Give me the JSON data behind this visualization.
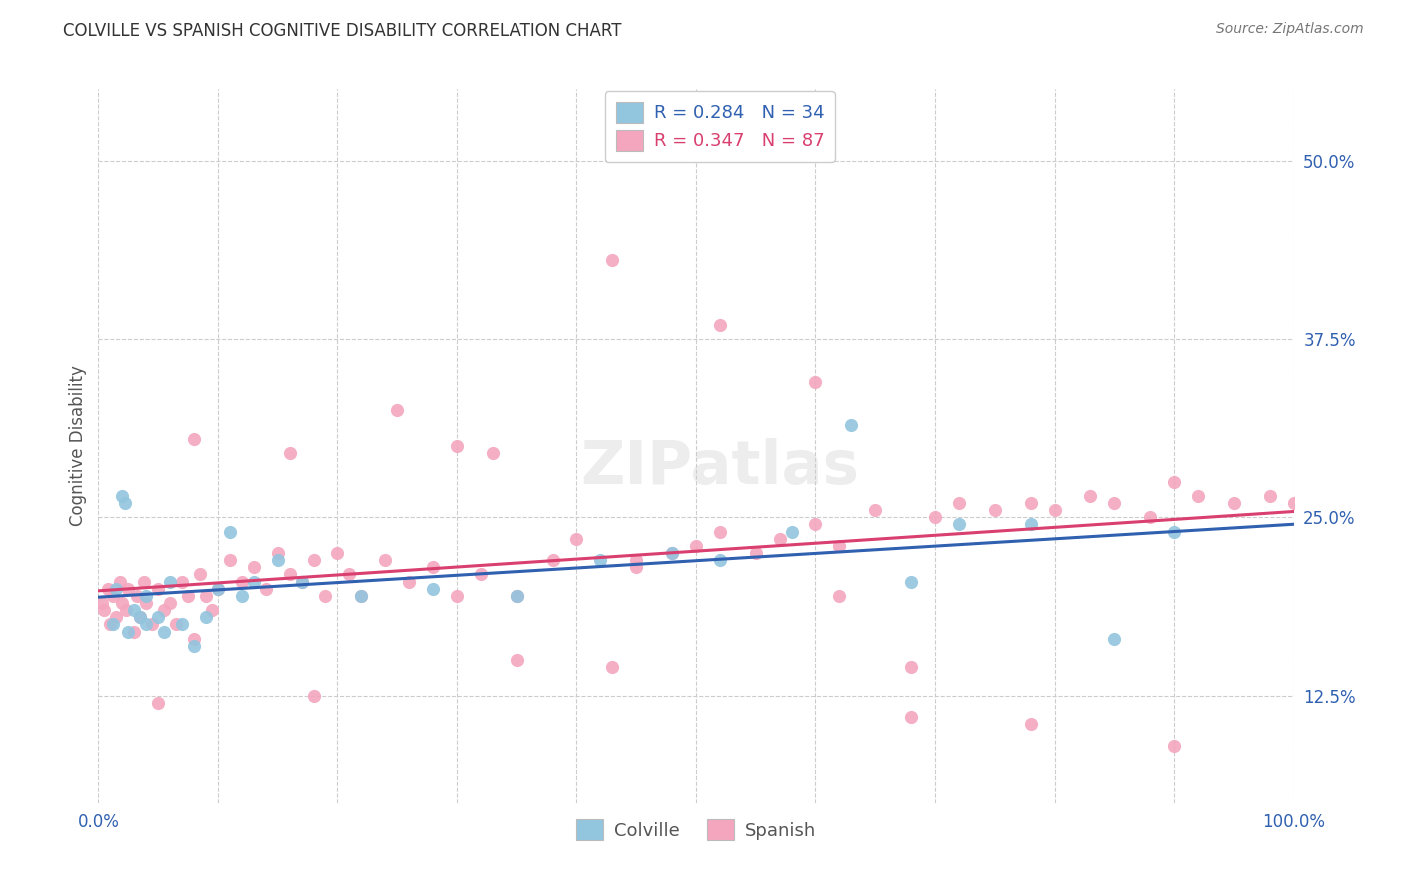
{
  "title": "COLVILLE VS SPANISH COGNITIVE DISABILITY CORRELATION CHART",
  "source": "Source: ZipAtlas.com",
  "ylabel_label": "Cognitive Disability",
  "legend_label1": "Colville",
  "legend_label2": "Spanish",
  "legend_R1": "R = 0.284",
  "legend_N1": "N = 34",
  "legend_R2": "R = 0.347",
  "legend_N2": "N = 87",
  "color_blue": "#92c5de",
  "color_pink": "#f4a6be",
  "line_blue": "#3060b0",
  "line_pink": "#d94070",
  "color_text_blue": "#3060b0",
  "color_text_pink": "#d94070",
  "background": "#ffffff",
  "grid_color": "#cccccc",
  "xmin": 0.0,
  "xmax": 100.0,
  "ymin": 5.0,
  "ymax": 55.0,
  "ytick_vals": [
    12.5,
    25.0,
    37.5,
    50.0
  ],
  "colville_x": [
    1.2,
    1.5,
    2.0,
    2.2,
    2.5,
    3.0,
    3.5,
    4.0,
    5.0,
    5.5,
    6.0,
    7.0,
    8.0,
    9.0,
    10.0,
    12.0,
    13.0,
    15.0,
    17.0,
    22.0,
    28.0,
    35.0,
    42.0,
    48.0,
    52.0,
    58.0,
    63.0,
    68.0,
    72.0,
    78.0,
    85.0,
    90.0,
    4.0,
    11.0
  ],
  "colville_y": [
    17.5,
    20.0,
    26.5,
    26.0,
    17.0,
    18.5,
    18.0,
    19.5,
    18.0,
    17.0,
    20.5,
    17.5,
    16.0,
    18.0,
    20.0,
    19.5,
    20.5,
    22.0,
    20.5,
    19.5,
    20.0,
    19.5,
    22.0,
    22.5,
    22.0,
    24.0,
    31.5,
    20.5,
    24.5,
    24.5,
    16.5,
    24.0,
    17.5,
    24.0
  ],
  "spanish_x": [
    0.3,
    0.5,
    0.8,
    1.0,
    1.2,
    1.5,
    1.8,
    2.0,
    2.3,
    2.5,
    3.0,
    3.2,
    3.5,
    3.8,
    4.0,
    4.5,
    5.0,
    5.5,
    6.0,
    6.5,
    7.0,
    7.5,
    8.0,
    8.5,
    9.0,
    9.5,
    10.0,
    11.0,
    12.0,
    13.0,
    14.0,
    15.0,
    16.0,
    17.0,
    18.0,
    19.0,
    20.0,
    21.0,
    22.0,
    24.0,
    26.0,
    28.0,
    30.0,
    32.0,
    33.0,
    35.0,
    38.0,
    40.0,
    43.0,
    45.0,
    48.0,
    50.0,
    52.0,
    55.0,
    57.0,
    60.0,
    62.0,
    65.0,
    68.0,
    70.0,
    72.0,
    75.0,
    78.0,
    80.0,
    83.0,
    85.0,
    88.0,
    90.0,
    92.0,
    95.0,
    98.0,
    100.0,
    25.0,
    30.0,
    43.0,
    52.0,
    60.0,
    16.0,
    8.0,
    5.0,
    18.0,
    35.0,
    68.0,
    78.0,
    90.0,
    45.0,
    62.0
  ],
  "spanish_y": [
    19.0,
    18.5,
    20.0,
    17.5,
    19.5,
    18.0,
    20.5,
    19.0,
    18.5,
    20.0,
    17.0,
    19.5,
    18.0,
    20.5,
    19.0,
    17.5,
    20.0,
    18.5,
    19.0,
    17.5,
    20.5,
    19.5,
    16.5,
    21.0,
    19.5,
    18.5,
    20.0,
    22.0,
    20.5,
    21.5,
    20.0,
    22.5,
    21.0,
    20.5,
    22.0,
    19.5,
    22.5,
    21.0,
    19.5,
    22.0,
    20.5,
    21.5,
    19.5,
    21.0,
    29.5,
    19.5,
    22.0,
    23.5,
    14.5,
    21.5,
    22.5,
    23.0,
    24.0,
    22.5,
    23.5,
    24.5,
    23.0,
    25.5,
    14.5,
    25.0,
    26.0,
    25.5,
    26.0,
    25.5,
    26.5,
    26.0,
    25.0,
    27.5,
    26.5,
    26.0,
    26.5,
    26.0,
    32.5,
    30.0,
    43.0,
    38.5,
    34.5,
    29.5,
    30.5,
    12.0,
    12.5,
    15.0,
    11.0,
    10.5,
    9.0,
    22.0,
    19.5
  ]
}
